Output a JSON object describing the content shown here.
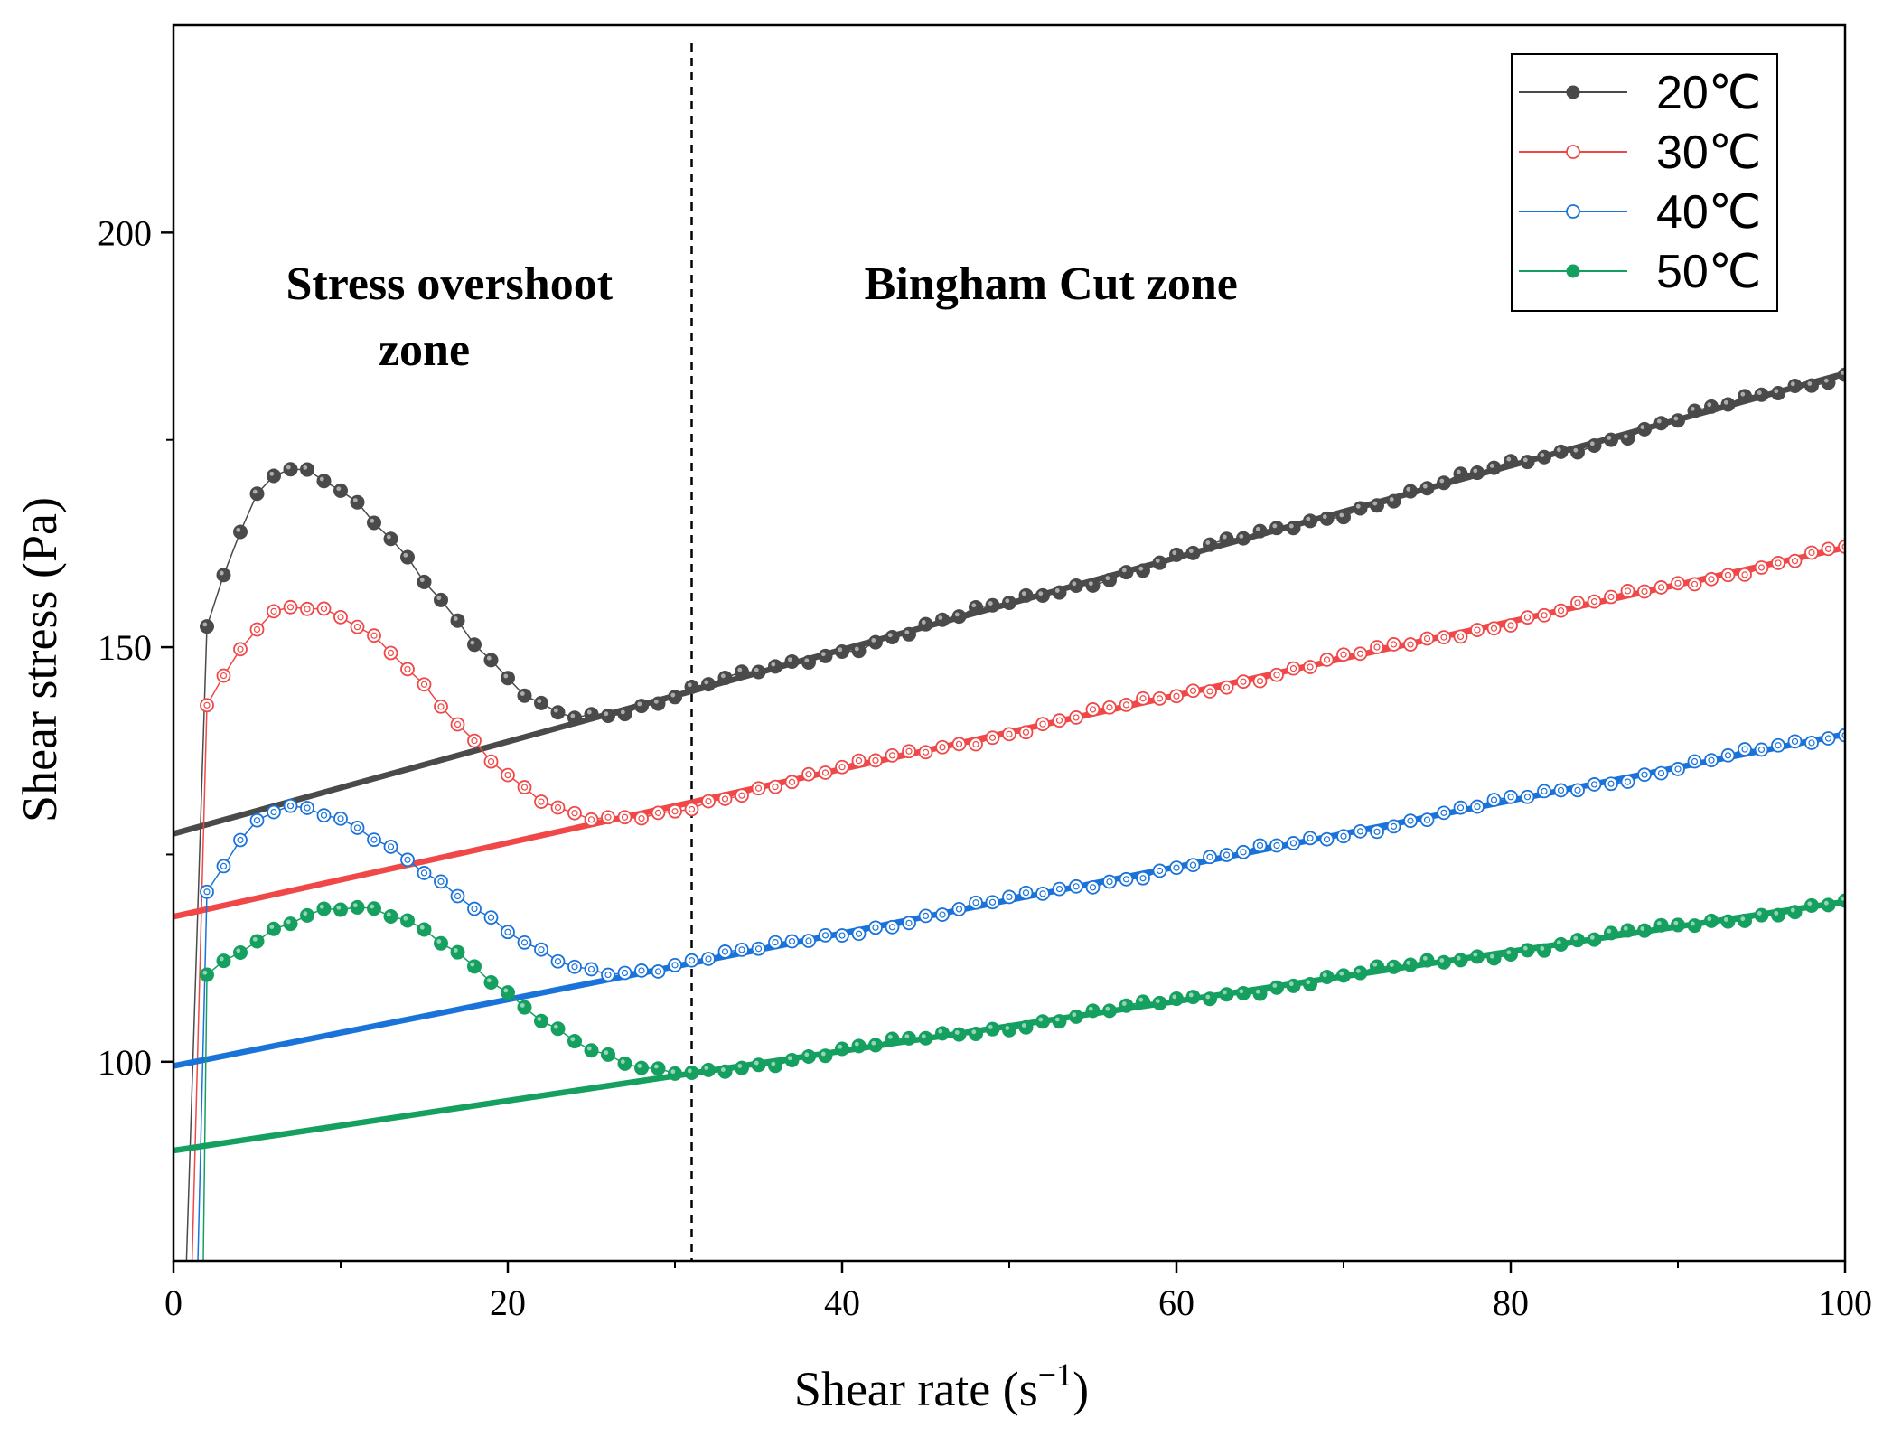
{
  "chart_data": {
    "type": "scatter",
    "title": "",
    "xlabel": "Shear rate (s",
    "xlabel_sup": "−1",
    "xlabel_end": ")",
    "ylabel": "Shear stress (Pa)",
    "xlim": [
      0,
      100
    ],
    "ylim": [
      76,
      225
    ],
    "x_ticks": [
      0,
      20,
      40,
      60,
      80,
      100
    ],
    "x_tick_labels": [
      "0",
      "20",
      "40",
      "60",
      "80",
      "100"
    ],
    "y_ticks": [
      100,
      150,
      200
    ],
    "y_tick_labels": [
      "100",
      "150",
      "200"
    ],
    "y_minor_ticks": [
      125,
      175
    ],
    "grid": false,
    "legend_position": "top-right",
    "divider_x": 31,
    "annotations": [
      {
        "text": "Stress overshoot",
        "x": 16.5,
        "y": 192
      },
      {
        "text": "zone",
        "x": 15,
        "y": 184
      },
      {
        "text": "Bingham Cut zone",
        "x": 52.5,
        "y": 192
      }
    ],
    "series": [
      {
        "name": "20℃",
        "color": "#4a4a4a",
        "marker": "filled",
        "fit": {
          "intercept": 127.5,
          "slope": 0.555
        },
        "peak": {
          "y0": 152.5,
          "x_peak": 7,
          "y_peak": 171.5,
          "x_min": 24,
          "y_min": 142
        },
        "noise": 0.7
      },
      {
        "name": "30℃",
        "color": "#f04848",
        "marker": "open",
        "fit": {
          "intercept": 117.5,
          "slope": 0.445
        },
        "peak": {
          "y0": 143,
          "x_peak": 7,
          "y_peak": 155,
          "x_min": 26,
          "y_min": 129
        },
        "noise": 0.6
      },
      {
        "name": "40℃",
        "color": "#1a73d9",
        "marker": "open",
        "fit": {
          "intercept": 99.5,
          "slope": 0.4
        },
        "peak": {
          "y0": 120.5,
          "x_peak": 7,
          "y_peak": 130.5,
          "x_min": 26,
          "y_min": 111
        },
        "noise": 0.6
      },
      {
        "name": "50℃",
        "color": "#15a060",
        "marker": "filled",
        "fit": {
          "intercept": 89.3,
          "slope": 0.3
        },
        "peak": {
          "y0": 110.5,
          "x_peak": 10,
          "y_peak": 118.5,
          "x_min": 30,
          "y_min": 98.5
        },
        "noise": 0.6
      }
    ]
  }
}
